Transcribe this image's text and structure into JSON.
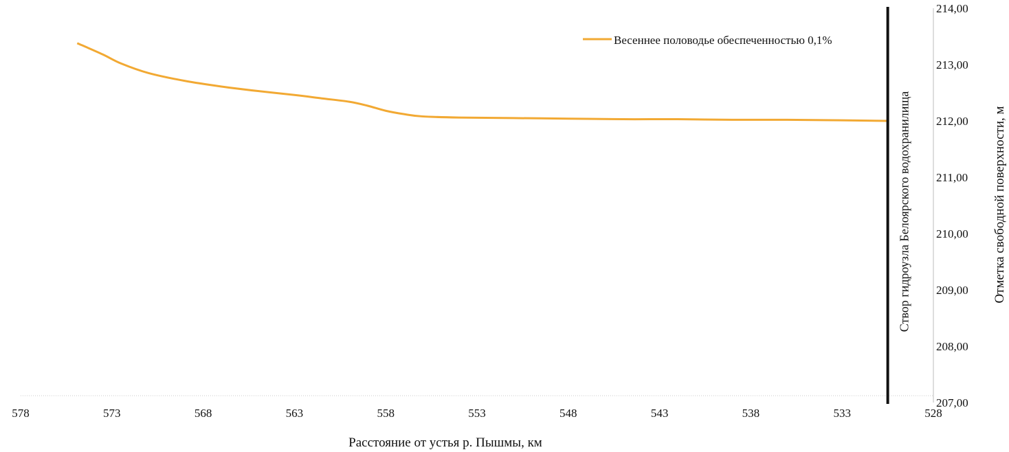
{
  "chart_data": {
    "type": "line",
    "xlabel": "Расстояние от устья р. Пышмы, км",
    "ylabel": "Отметка  свободной  поверхности, м",
    "x_reversed": true,
    "xlim": [
      578,
      528
    ],
    "ylim": [
      207,
      214
    ],
    "x_ticks": [
      "578",
      "573",
      "568",
      "563",
      "558",
      "553",
      "548",
      "543",
      "538",
      "533",
      "528"
    ],
    "y_ticks": [
      "207,00",
      "208,00",
      "209,00",
      "210,00",
      "211,00",
      "212,00",
      "213,00",
      "214,00"
    ],
    "y_axis_position": "right",
    "grid": false,
    "legend_position": "top-right",
    "colors": {
      "series": "#F2A933",
      "axis": "#bbbbbb",
      "dam_line": "#111111"
    },
    "series": [
      {
        "name": "Весеннее половодье обеспеченностью 0,1%",
        "x": [
          574.9,
          573.5,
          572.5,
          571.0,
          569.0,
          567.0,
          565.0,
          563.0,
          561.5,
          560.0,
          559.0,
          558.0,
          557.0,
          556.0,
          554.0,
          551.0,
          548.0,
          545.0,
          542.0,
          539.0,
          536.0,
          533.0,
          530.5
        ],
        "values": [
          213.38,
          213.18,
          213.02,
          212.85,
          212.71,
          212.61,
          212.53,
          212.46,
          212.4,
          212.34,
          212.27,
          212.18,
          212.12,
          212.08,
          212.06,
          212.05,
          212.04,
          212.03,
          212.03,
          212.02,
          212.02,
          212.01,
          212.0
        ]
      }
    ],
    "annotations": [
      {
        "text": "Створ гидроузла Белоярского водохранилища",
        "x": 530.5
      }
    ]
  }
}
